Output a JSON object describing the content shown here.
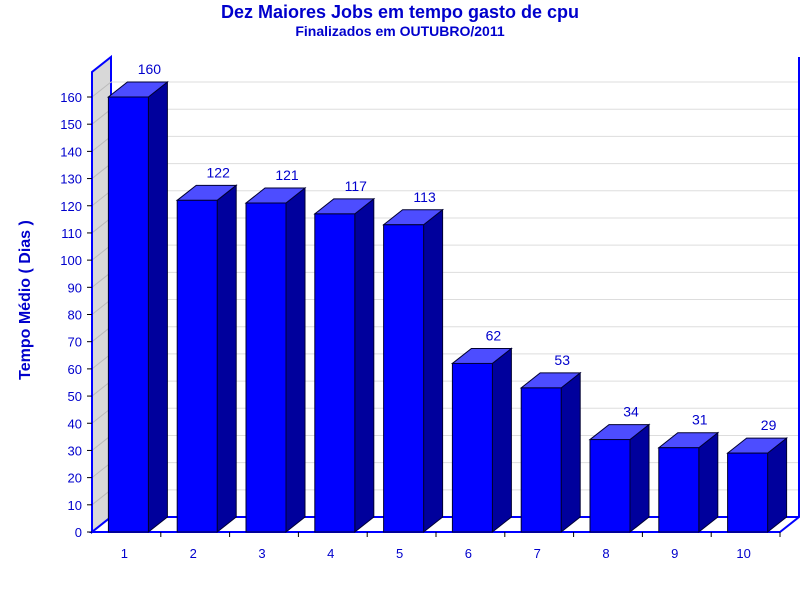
{
  "chart_data": {
    "type": "bar",
    "title": "Dez Maiores Jobs em tempo gasto de cpu",
    "subtitle": "Finalizados em OUTUBRO/2011",
    "ylabel": "Tempo Médio ( Dias )",
    "xlabel": "",
    "categories": [
      "1",
      "2",
      "3",
      "4",
      "5",
      "6",
      "7",
      "8",
      "9",
      "10"
    ],
    "values": [
      160,
      122,
      121,
      117,
      113,
      62,
      53,
      34,
      31,
      29
    ],
    "ylim": [
      0,
      160
    ],
    "yticks": [
      "0",
      "10",
      "20",
      "30",
      "40",
      "50",
      "60",
      "70",
      "80",
      "90",
      "100",
      "110",
      "120",
      "130",
      "140",
      "150",
      "160"
    ],
    "grid": true,
    "style": "3d",
    "colors": {
      "bar_front": "#0000ff",
      "bar_side": "#00009c",
      "bar_top": "#4d4dff",
      "text": "#0000cc",
      "grid": "#dddddd",
      "axis": "#0000ff",
      "wall": "#d8d8d8"
    }
  }
}
